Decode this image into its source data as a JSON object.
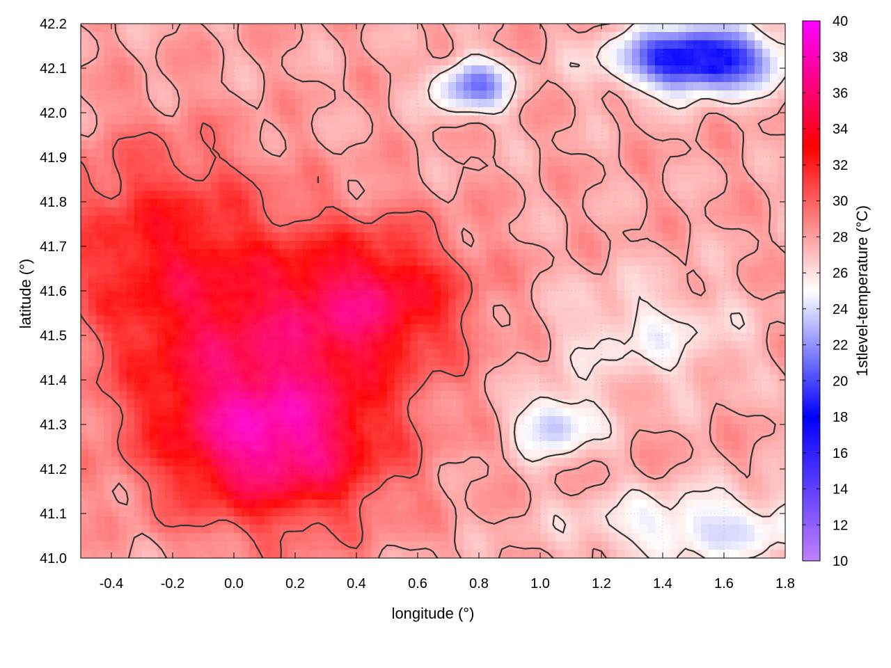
{
  "chart_data": {
    "type": "heatmap",
    "xlabel": "longitude (°)",
    "ylabel": "latitude (°)",
    "colorbar_label": "1stlevel-temperature (°C)",
    "xlim": [
      -0.5,
      1.8
    ],
    "ylim": [
      41.0,
      42.2
    ],
    "clim": [
      10,
      40
    ],
    "x_ticks": [
      -0.4,
      -0.2,
      0.0,
      0.2,
      0.4,
      0.6,
      0.8,
      1.0,
      1.2,
      1.4,
      1.6,
      1.8
    ],
    "x_tick_labels": [
      "-0.4",
      "-0.2",
      "0.0",
      "0.2",
      "0.4",
      "0.6",
      "0.8",
      "1.0",
      "1.2",
      "1.4",
      "1.6",
      "1.8"
    ],
    "y_ticks": [
      41.0,
      41.1,
      41.2,
      41.3,
      41.4,
      41.5,
      41.6,
      41.7,
      41.8,
      41.9,
      42.0,
      42.1,
      42.2
    ],
    "y_tick_labels": [
      "41.0",
      "41.1",
      "41.2",
      "41.3",
      "41.4",
      "41.5",
      "41.6",
      "41.7",
      "41.8",
      "41.9",
      "42.0",
      "42.1",
      "42.2"
    ],
    "c_ticks": [
      10,
      12,
      14,
      16,
      18,
      20,
      22,
      24,
      26,
      28,
      30,
      32,
      34,
      36,
      38,
      40
    ],
    "c_tick_labels": [
      "10",
      "12",
      "14",
      "16",
      "18",
      "20",
      "22",
      "24",
      "26",
      "28",
      "30",
      "32",
      "34",
      "36",
      "38",
      "40"
    ],
    "colormap": [
      {
        "value": 10,
        "color": "#c080ff"
      },
      {
        "value": 18,
        "color": "#0000ff"
      },
      {
        "value": 25,
        "color": "#ffffff"
      },
      {
        "value": 33,
        "color": "#ff0000"
      },
      {
        "value": 40,
        "color": "#ff00ff"
      }
    ],
    "grid": true,
    "field_features": [
      {
        "kind": "warm",
        "lon": 0.15,
        "lat": 41.25,
        "amp": 7.5,
        "sx": 0.35,
        "sy": 0.17
      },
      {
        "kind": "warm",
        "lon": 0.45,
        "lat": 41.58,
        "amp": 6.5,
        "sx": 0.3,
        "sy": 0.16
      },
      {
        "kind": "warm",
        "lon": -0.25,
        "lat": 41.72,
        "amp": 4.0,
        "sx": 0.35,
        "sy": 0.22
      },
      {
        "kind": "warm",
        "lon": 0.0,
        "lat": 41.45,
        "amp": 5.0,
        "sx": 0.4,
        "sy": 0.25
      },
      {
        "kind": "cool",
        "lon": 1.52,
        "lat": 42.12,
        "amp": -12.0,
        "sx": 0.25,
        "sy": 0.07
      },
      {
        "kind": "cool",
        "lon": 0.78,
        "lat": 42.06,
        "amp": -7.0,
        "sx": 0.12,
        "sy": 0.06
      },
      {
        "kind": "cool",
        "lon": 1.05,
        "lat": 41.3,
        "amp": -5.0,
        "sx": 0.13,
        "sy": 0.07
      },
      {
        "kind": "cool",
        "lon": 1.35,
        "lat": 41.5,
        "amp": -2.5,
        "sx": 0.3,
        "sy": 0.12
      },
      {
        "kind": "cool",
        "lon": 1.55,
        "lat": 41.07,
        "amp": -4.0,
        "sx": 0.4,
        "sy": 0.08
      }
    ],
    "base_temperature": 28,
    "contour_levels": [
      26,
      28,
      30
    ]
  }
}
